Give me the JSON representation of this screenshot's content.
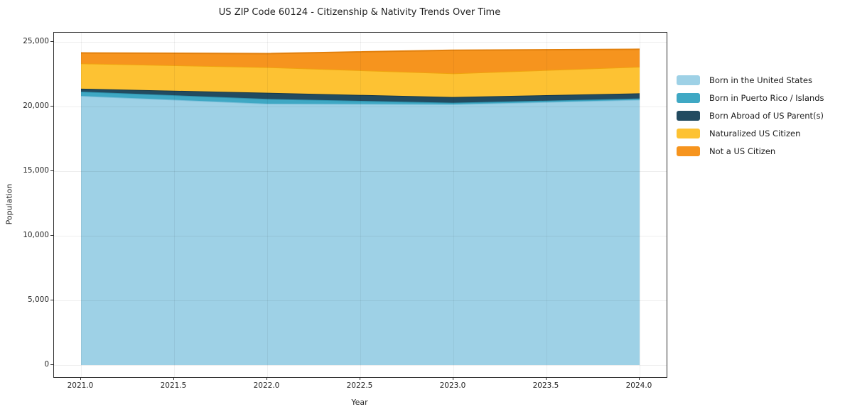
{
  "title": "US ZIP Code 60124 - Citizenship & Nativity Trends Over Time",
  "chart_data": {
    "type": "area",
    "stacked": true,
    "title": "US ZIP Code 60124 - Citizenship & Nativity Trends Over Time",
    "xlabel": "Year",
    "ylabel": "Population",
    "x": [
      2021,
      2022,
      2023,
      2024
    ],
    "series": [
      {
        "name": "Born in the United States",
        "color": "#9ed1e6",
        "edge_color": "#7cc0da",
        "values": [
          20800,
          20200,
          20150,
          20500
        ]
      },
      {
        "name": "Born in Puerto Rico / Islands",
        "color": "#3fa8c4",
        "edge_color": "#2e93ae",
        "values": [
          330,
          370,
          120,
          100
        ]
      },
      {
        "name": "Born Abroad of US Parent(s)",
        "color": "#224b60",
        "edge_color": "#16394a",
        "values": [
          230,
          470,
          440,
          400
        ]
      },
      {
        "name": "Naturalized US Citizen",
        "color": "#fdc233",
        "edge_color": "#f0a30e",
        "values": [
          1950,
          1980,
          1830,
          2050
        ]
      },
      {
        "name": "Not a US Citizen",
        "color": "#f6941e",
        "edge_color": "#e2800d",
        "values": [
          810,
          1050,
          1790,
          1350
        ]
      }
    ],
    "x_ticks": [
      "2021.0",
      "2021.5",
      "2022.0",
      "2022.5",
      "2023.0",
      "2023.5",
      "2024.0"
    ],
    "y_ticks": [
      "0",
      "5,000",
      "10,000",
      "15,000",
      "20,000",
      "25,000"
    ],
    "y_tick_values": [
      0,
      5000,
      10000,
      15000,
      20000,
      25000
    ],
    "xlim": [
      2021,
      2024
    ],
    "ylim": [
      0,
      25000
    ],
    "grid": true,
    "legend_position": "right"
  }
}
